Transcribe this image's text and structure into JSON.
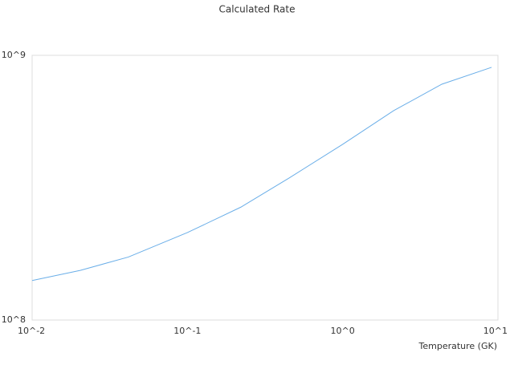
{
  "chart_data": {
    "type": "line",
    "title": "Calculated Rate",
    "xlabel": "Temperature (GK)",
    "xscale": "log",
    "yscale": "log",
    "x": [
      0.01,
      0.0204,
      0.0417,
      0.1,
      0.221,
      0.452,
      1,
      2.13,
      4.35,
      9.1
    ],
    "series": [
      {
        "color": "#6aaee8",
        "values": [
          141000000,
          154000000,
          173000000,
          214000000,
          267000000,
          344000000,
          461000000,
          618000000,
          778000000,
          901000000
        ]
      }
    ],
    "xlim": [
      0.01,
      10
    ],
    "ylim": [
      100000000,
      1000000000
    ],
    "xticks": [
      {
        "value": 0.01,
        "label": "10^-2"
      },
      {
        "value": 0.1,
        "label": "10^-1"
      },
      {
        "value": 1,
        "label": "10^0"
      },
      {
        "value": 10,
        "label": "10^1"
      }
    ],
    "yticks": [
      {
        "value": 100000000,
        "label": "10^8"
      },
      {
        "value": 1000000000,
        "label": "10^9"
      }
    ],
    "grid": false
  }
}
